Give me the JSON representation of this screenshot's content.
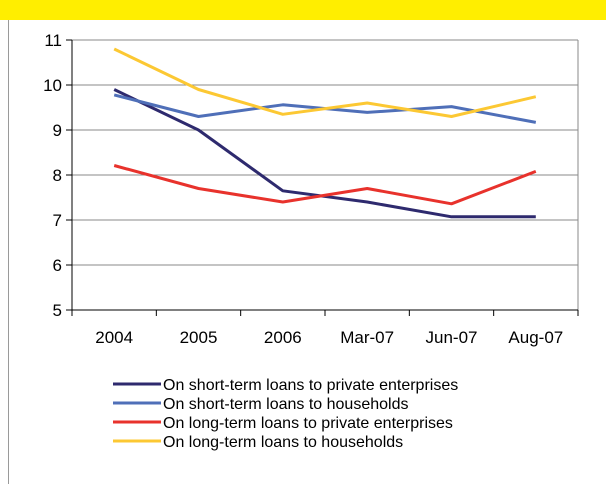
{
  "chart_data": {
    "type": "line",
    "title": "",
    "xlabel": "",
    "ylabel": "",
    "categories": [
      "2004",
      "2005",
      "2006",
      "Mar-07",
      "Jun-07",
      "Aug-07"
    ],
    "ylim": [
      5,
      11
    ],
    "yticks": [
      "5",
      "6",
      "7",
      "8",
      "9",
      "10",
      "11"
    ],
    "grid": true,
    "legend_position": "bottom",
    "series": [
      {
        "name": "On short-term loans to private enterprises",
        "color": "#2e2a6e",
        "values": [
          9.9,
          9.0,
          7.65,
          7.4,
          7.07,
          7.07
        ]
      },
      {
        "name": "On short-term loans to households",
        "color": "#4f6fb8",
        "values": [
          9.78,
          9.3,
          9.56,
          9.39,
          9.52,
          9.17
        ]
      },
      {
        "name": "On long-term loans to private enterprises",
        "color": "#e8322c",
        "values": [
          8.21,
          7.7,
          7.4,
          7.7,
          7.36,
          8.08
        ]
      },
      {
        "name": "On long-term loans to households",
        "color": "#fcc833",
        "values": [
          10.8,
          9.9,
          9.35,
          9.6,
          9.3,
          9.74
        ]
      }
    ]
  }
}
